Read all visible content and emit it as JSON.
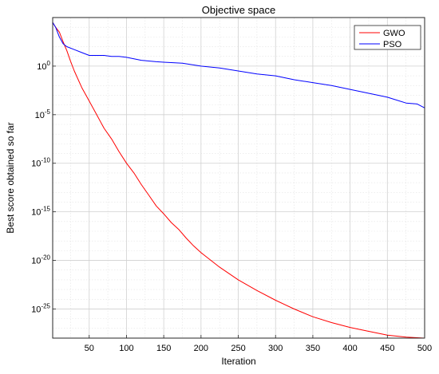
{
  "chart_data": {
    "type": "line",
    "title": "Objective space",
    "xlabel": "Iteration",
    "ylabel": "Best score obtained so far",
    "xlim": [
      1,
      500
    ],
    "ylim_log10": [
      -28,
      5
    ],
    "y_scale": "log",
    "grid": true,
    "minor_grid": true,
    "legend_position": "top-right",
    "x_ticks": [
      50,
      100,
      150,
      200,
      250,
      300,
      350,
      400,
      450,
      500
    ],
    "x_tick_labels": [
      "50",
      "100",
      "150",
      "200",
      "250",
      "300",
      "350",
      "400",
      "450",
      "500"
    ],
    "y_ticks_log10": [
      0,
      -5,
      -10,
      -15,
      -20,
      -25
    ],
    "y_tick_labels": [
      {
        "base": "10",
        "exp": "0"
      },
      {
        "base": "10",
        "exp": "-5"
      },
      {
        "base": "10",
        "exp": "-10"
      },
      {
        "base": "10",
        "exp": "-15"
      },
      {
        "base": "10",
        "exp": "-20"
      },
      {
        "base": "10",
        "exp": "-25"
      }
    ],
    "series": [
      {
        "name": "GWO",
        "color": "#ff0000",
        "points_log10": [
          [
            1,
            4.5
          ],
          [
            5,
            4.0
          ],
          [
            10,
            3.5
          ],
          [
            15,
            2.5
          ],
          [
            20,
            1.6
          ],
          [
            25,
            0.5
          ],
          [
            30,
            -0.5
          ],
          [
            40,
            -2.2
          ],
          [
            50,
            -3.6
          ],
          [
            60,
            -5.0
          ],
          [
            70,
            -6.4
          ],
          [
            80,
            -7.5
          ],
          [
            90,
            -8.8
          ],
          [
            100,
            -10.0
          ],
          [
            110,
            -11.0
          ],
          [
            120,
            -12.2
          ],
          [
            130,
            -13.3
          ],
          [
            140,
            -14.4
          ],
          [
            150,
            -15.2
          ],
          [
            160,
            -16.1
          ],
          [
            170,
            -16.8
          ],
          [
            180,
            -17.7
          ],
          [
            190,
            -18.5
          ],
          [
            200,
            -19.2
          ],
          [
            225,
            -20.7
          ],
          [
            250,
            -22.0
          ],
          [
            275,
            -23.1
          ],
          [
            300,
            -24.1
          ],
          [
            325,
            -25.0
          ],
          [
            350,
            -25.8
          ],
          [
            375,
            -26.4
          ],
          [
            400,
            -26.9
          ],
          [
            425,
            -27.3
          ],
          [
            450,
            -27.7
          ],
          [
            475,
            -27.9
          ],
          [
            500,
            -28.0
          ]
        ]
      },
      {
        "name": "PSO",
        "color": "#0000ff",
        "points_log10": [
          [
            1,
            4.5
          ],
          [
            5,
            4.0
          ],
          [
            10,
            3.0
          ],
          [
            15,
            2.3
          ],
          [
            20,
            2.0
          ],
          [
            30,
            1.7
          ],
          [
            40,
            1.4
          ],
          [
            50,
            1.1
          ],
          [
            60,
            1.1
          ],
          [
            70,
            1.1
          ],
          [
            80,
            1.0
          ],
          [
            90,
            1.0
          ],
          [
            100,
            0.9
          ],
          [
            120,
            0.6
          ],
          [
            140,
            0.45
          ],
          [
            150,
            0.4
          ],
          [
            175,
            0.3
          ],
          [
            200,
            0.0
          ],
          [
            225,
            -0.2
          ],
          [
            250,
            -0.5
          ],
          [
            275,
            -0.8
          ],
          [
            300,
            -1.0
          ],
          [
            325,
            -1.4
          ],
          [
            350,
            -1.7
          ],
          [
            375,
            -2.0
          ],
          [
            400,
            -2.4
          ],
          [
            425,
            -2.8
          ],
          [
            450,
            -3.2
          ],
          [
            475,
            -3.8
          ],
          [
            490,
            -3.9
          ],
          [
            500,
            -4.3
          ]
        ]
      }
    ]
  }
}
